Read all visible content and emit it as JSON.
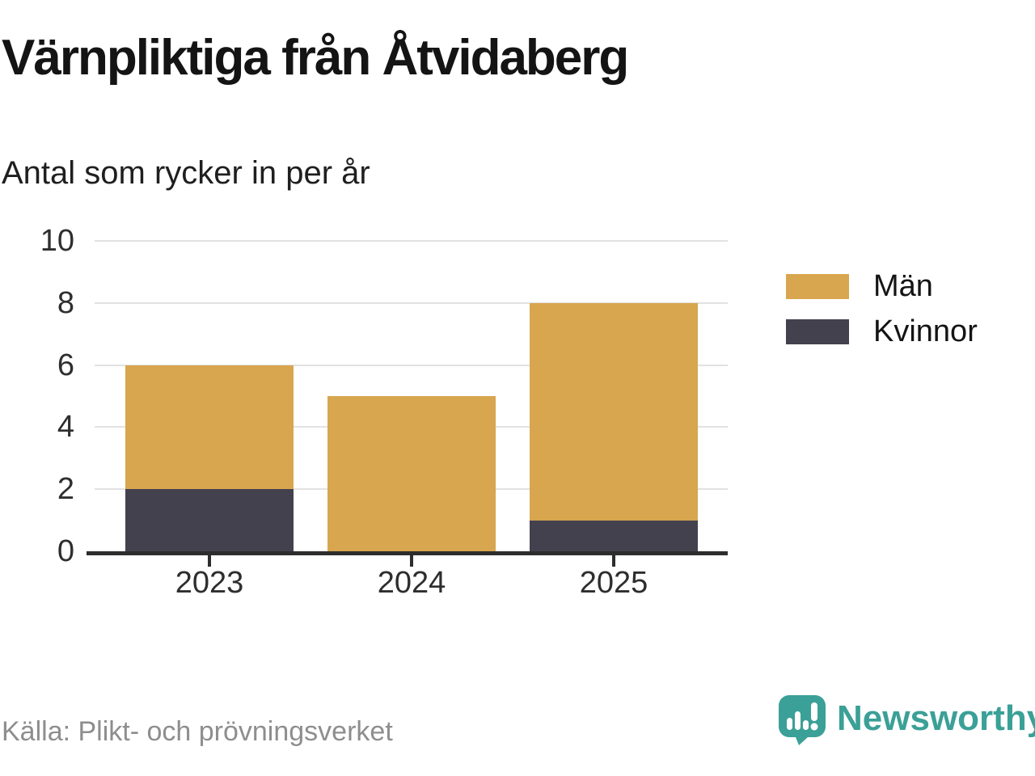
{
  "header": {
    "title": "Värnpliktiga från Åtvidaberg",
    "subtitle": "Antal som rycker in per år"
  },
  "chart_data": {
    "type": "bar",
    "stacked": true,
    "title": "Värnpliktiga från Åtvidaberg",
    "subtitle": "Antal som rycker in per år",
    "categories": [
      "2023",
      "2024",
      "2025"
    ],
    "series": [
      {
        "name": "Kvinnor",
        "color": "#44414e",
        "values": [
          2,
          0,
          1
        ]
      },
      {
        "name": "Män",
        "color": "#d8a64f",
        "values": [
          4,
          5,
          7
        ]
      }
    ],
    "totals": [
      6,
      5,
      8
    ],
    "xlabel": "",
    "ylabel": "",
    "ylim": [
      0,
      10
    ],
    "yticks": [
      0,
      2,
      4,
      6,
      8,
      10
    ],
    "grid": true,
    "legend_position": "right",
    "legend_order": [
      "Män",
      "Kvinnor"
    ]
  },
  "footer": {
    "source": "Källa: Plikt- och prövningsverket",
    "brand": "Newsworthy"
  },
  "colors": {
    "men": "#d8a64f",
    "women": "#44414e",
    "grid": "#e2e2e2",
    "axis": "#2d2d2d",
    "brand_teal": "#3ba097",
    "source_gray": "#8e8e8e"
  }
}
